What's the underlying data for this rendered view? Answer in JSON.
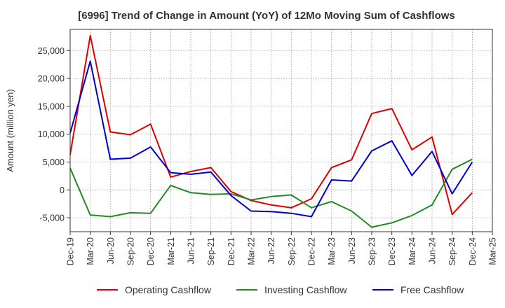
{
  "chart_data": {
    "type": "line",
    "title": "[6996]  Trend of Change in Amount (YoY) of 12Mo Moving Sum of Cashflows",
    "xlabel": "",
    "ylabel": "Amount (million yen)",
    "ylim": [
      -7500,
      28800
    ],
    "yticks": [
      -5000,
      0,
      5000,
      10000,
      15000,
      20000,
      25000
    ],
    "ytick_labels": [
      "-5,000",
      "0",
      "5,000",
      "10,000",
      "15,000",
      "20,000",
      "25,000"
    ],
    "categories": [
      "Dec-19",
      "Mar-20",
      "Jun-20",
      "Sep-20",
      "Dec-20",
      "Mar-21",
      "Jun-21",
      "Sep-21",
      "Dec-21",
      "Mar-22",
      "Jun-22",
      "Sep-22",
      "Dec-22",
      "Mar-23",
      "Jun-23",
      "Sep-23",
      "Dec-23",
      "Mar-24",
      "Jun-24",
      "Sep-24",
      "Dec-24",
      "Mar-25"
    ],
    "grid": true,
    "legend_position": "bottom",
    "series": [
      {
        "name": "Operating Cashflow",
        "color": "#dd0000",
        "values": [
          6300,
          27700,
          10400,
          9900,
          11800,
          2300,
          3300,
          4000,
          -300,
          -1900,
          -2700,
          -3200,
          -1600,
          4000,
          5400,
          13700,
          14600,
          7200,
          9500,
          -4400,
          -500,
          null
        ]
      },
      {
        "name": "Investing Cashflow",
        "color": "#228b22",
        "values": [
          3900,
          -4500,
          -4800,
          -4100,
          -4200,
          800,
          -500,
          -800,
          -700,
          -1800,
          -1200,
          -900,
          -3200,
          -2100,
          -3800,
          -6700,
          -5900,
          -4600,
          -2700,
          3700,
          5500,
          null
        ]
      },
      {
        "name": "Free Cashflow",
        "color": "#0000cc",
        "values": [
          10200,
          23100,
          5500,
          5700,
          7700,
          3100,
          2800,
          3200,
          -1000,
          -3800,
          -3900,
          -4200,
          -4800,
          1800,
          1600,
          7000,
          8800,
          2600,
          6900,
          -700,
          5000,
          null
        ]
      }
    ]
  }
}
